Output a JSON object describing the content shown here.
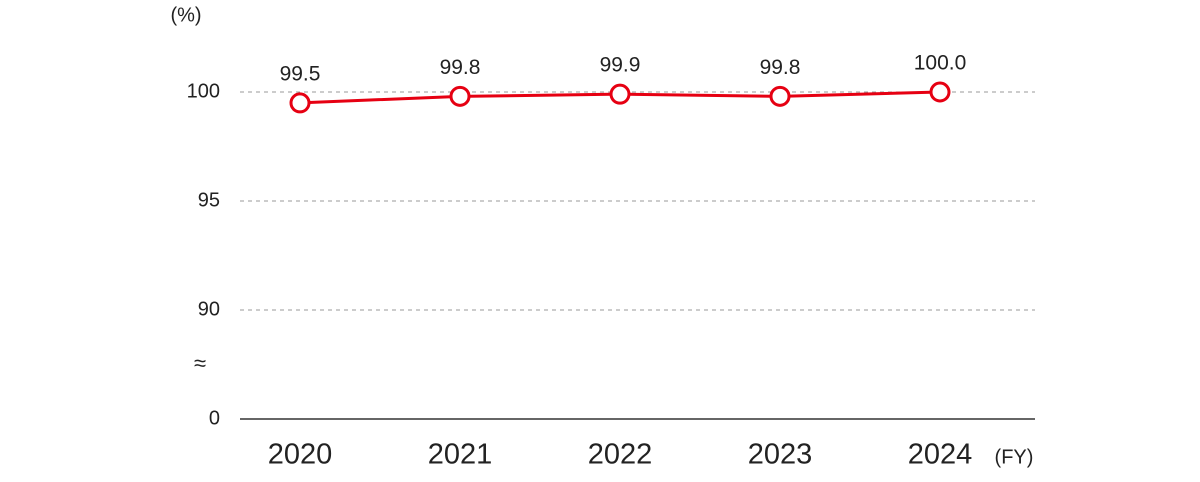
{
  "chart_data": {
    "type": "line",
    "y_unit": "(%)",
    "x_unit": "(FY)",
    "categories": [
      "2020",
      "2021",
      "2022",
      "2023",
      "2024"
    ],
    "series": [
      {
        "color": "#e60012",
        "values": [
          99.5,
          99.8,
          99.9,
          99.8,
          100.0
        ],
        "value_labels": [
          "99.5",
          "99.8",
          "99.9",
          "99.8",
          "100.0"
        ]
      }
    ],
    "ylim": [
      0,
      100
    ],
    "yticks": [
      0,
      90,
      95,
      100
    ],
    "axis_break": true,
    "grid": true
  }
}
